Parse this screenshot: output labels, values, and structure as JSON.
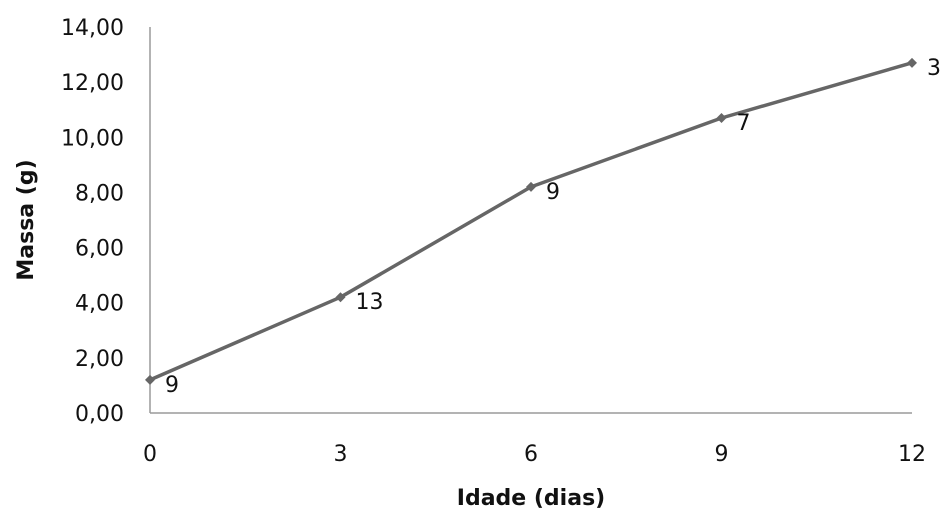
{
  "chart_data": {
    "type": "line",
    "xlabel": "Idade (dias)",
    "ylabel": "Massa (g)",
    "x": [
      0,
      3,
      6,
      9,
      12
    ],
    "xticks": [
      "0",
      "3",
      "6",
      "9",
      "12"
    ],
    "yticks": [
      "0,00",
      "2,00",
      "4,00",
      "6,00",
      "8,00",
      "10,00",
      "12,00",
      "14,00"
    ],
    "ylim": [
      0,
      14
    ],
    "xlim": [
      0,
      12
    ],
    "grid": false,
    "series": [
      {
        "values": [
          1.2,
          4.2,
          8.2,
          10.7,
          12.7
        ],
        "data_labels": [
          "9",
          "13",
          "9",
          "7",
          "3"
        ],
        "color": "#666666",
        "marker": "diamond"
      }
    ]
  }
}
